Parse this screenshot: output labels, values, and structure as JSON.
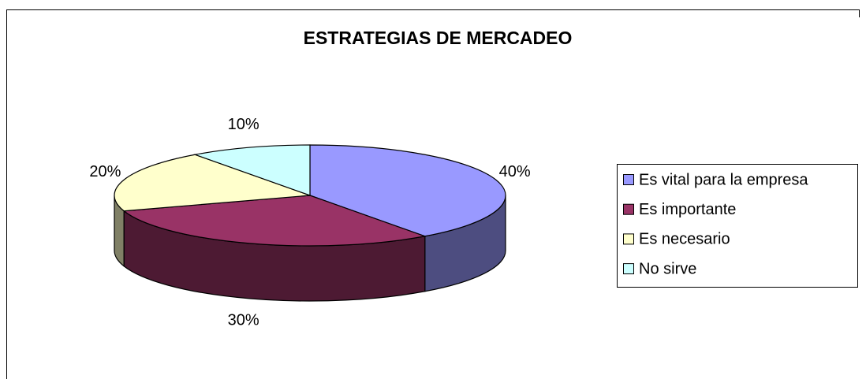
{
  "chart_data": {
    "type": "pie3d",
    "title": "ESTRATEGIAS  DE  MERCADEO",
    "categories": [
      "Es vital para la empresa",
      "Es importante",
      "Es necesario",
      "No sirve"
    ],
    "values": [
      40,
      30,
      20,
      10
    ],
    "value_labels": [
      "40%",
      "30%",
      "20%",
      "10%"
    ],
    "colors": [
      "#9999ff",
      "#993366",
      "#ffffcc",
      "#ccffff"
    ],
    "legend": "right"
  }
}
